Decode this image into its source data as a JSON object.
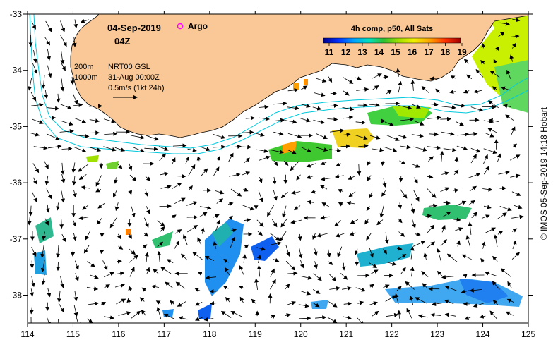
{
  "header": {
    "date": "04-Sep-2019",
    "time": "04Z",
    "argo_label": "Argo",
    "argo_color": "#ff00ff"
  },
  "legend": {
    "contour_200": "200m",
    "contour_1000": "1000m",
    "product": "NRT00 GSL",
    "product_date": "31-Aug 00:00Z",
    "scale_label": "0.5m/s (1kt 24h)",
    "contour_color": "#00c8dc"
  },
  "colorbar": {
    "title": "4h comp, p50, All Sats",
    "ticks": [
      "11",
      "12",
      "13",
      "14",
      "15",
      "16",
      "17",
      "18",
      "19"
    ],
    "colors": [
      "#000090",
      "#0030ff",
      "#00a0ff",
      "#00e0c0",
      "#30c030",
      "#a0e000",
      "#f0f000",
      "#ffa000",
      "#ff3000",
      "#a00000"
    ]
  },
  "axes": {
    "x_ticks": [
      "114",
      "115",
      "116",
      "117",
      "118",
      "119",
      "120",
      "121",
      "122",
      "123",
      "124",
      "125"
    ],
    "y_ticks": [
      "-33",
      "-34",
      "-35",
      "-36",
      "-37",
      "-38"
    ]
  },
  "land_color": "#fac896",
  "credit": "© IMOS 05-Sep-2019 14:18 Hobart"
}
